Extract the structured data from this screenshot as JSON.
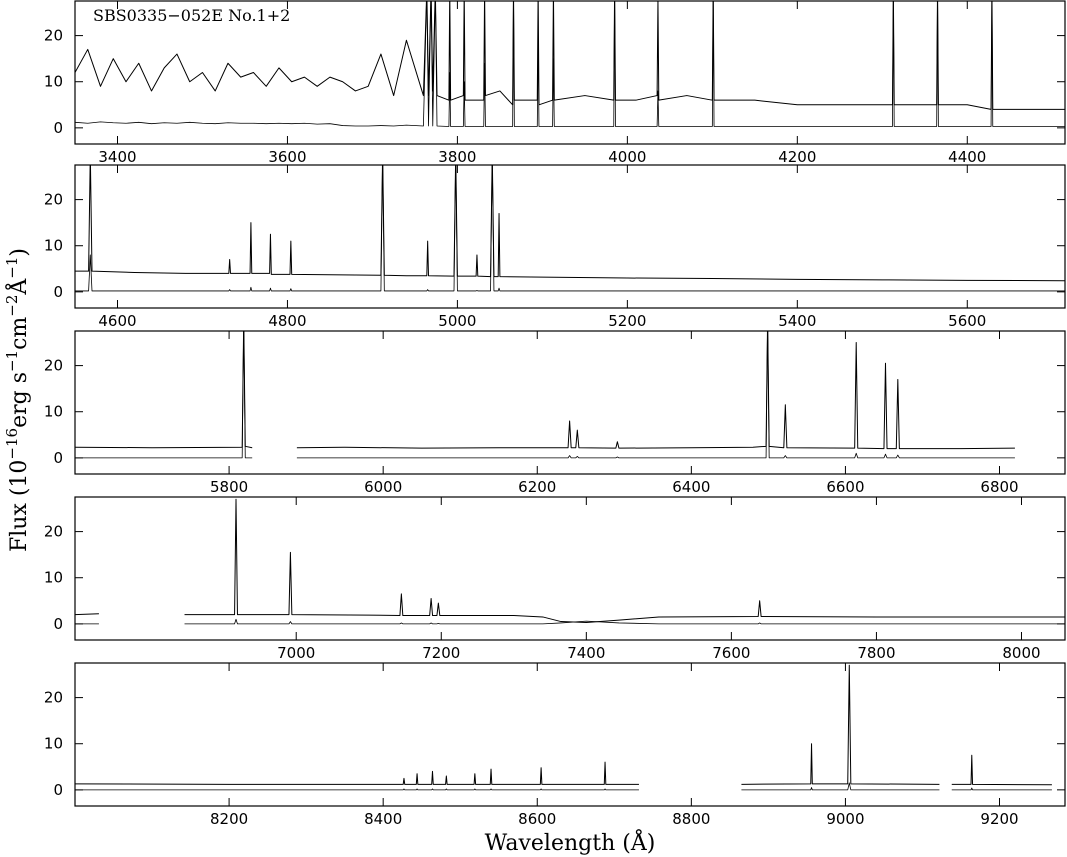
{
  "figure": {
    "xlabel": "Wavelength (Å)",
    "ylabel": [
      "Flux (10",
      "−16",
      "erg s",
      "−1",
      "cm",
      "−2",
      "Å",
      "−1",
      ")"
    ]
  },
  "chart_data": [
    {
      "type": "line",
      "title": "SBS0335−052E No.1+2",
      "xlim": [
        3350,
        4515
      ],
      "ylim": [
        -3.5,
        27.5
      ],
      "xticks": [
        3400,
        3600,
        3800,
        4000,
        4200,
        4400
      ],
      "yticks": [
        0,
        10,
        20
      ],
      "x": [
        3350,
        3365,
        3380,
        3395,
        3410,
        3425,
        3440,
        3455,
        3470,
        3485,
        3500,
        3515,
        3530,
        3545,
        3560,
        3575,
        3590,
        3605,
        3620,
        3635,
        3650,
        3665,
        3680,
        3695,
        3710,
        3725,
        3740,
        3760,
        3764,
        3766,
        3769,
        3771,
        3774,
        3776,
        3790,
        3791,
        3792,
        3807,
        3808,
        3809,
        3831,
        3832,
        3833,
        3850,
        3865,
        3866,
        3867,
        3894,
        3895,
        3896,
        3912,
        3913,
        3914,
        3950,
        3984,
        3985,
        3986,
        4010,
        4035,
        4036,
        4037,
        4070,
        4100,
        4101,
        4102,
        4150,
        4200,
        4250,
        4312,
        4313,
        4314,
        4340,
        4364,
        4365,
        4366,
        4400,
        4428,
        4429,
        4430,
        4470,
        4515
      ],
      "series": [
        {
          "color": "#000000",
          "values": [
            12,
            17,
            9,
            15,
            10,
            14,
            8,
            13,
            16,
            10,
            12,
            8,
            14,
            11,
            12,
            9,
            13,
            10,
            11,
            9,
            11,
            10,
            8,
            9,
            16,
            7,
            19,
            7,
            30,
            7,
            30,
            8,
            30,
            7,
            6,
            30,
            6,
            7,
            30,
            6,
            6,
            30,
            7,
            8,
            5,
            30,
            6,
            6,
            30,
            5,
            6,
            30,
            6,
            7,
            6,
            30,
            6,
            6,
            7,
            28,
            6,
            7,
            6,
            30,
            6,
            6,
            5,
            5,
            5,
            30,
            5,
            5,
            5,
            30,
            5,
            5,
            4,
            30,
            4,
            4,
            4
          ]
        },
        {
          "color": "#000000",
          "values": [
            1.2,
            1,
            1.3,
            1.1,
            1,
            1.2,
            0.9,
            1.1,
            1,
            1.2,
            1,
            0.9,
            1.1,
            1,
            1,
            0.9,
            1,
            0.9,
            1,
            0.8,
            0.9,
            0.5,
            0.4,
            0.4,
            0.5,
            0.4,
            0.6,
            0.4,
            30,
            0.4,
            30,
            0.4,
            30,
            0.4,
            0.3,
            12,
            0.3,
            0.3,
            10,
            0.3,
            0.3,
            14,
            0.3,
            0.3,
            0.3,
            30,
            0.3,
            0.3,
            20,
            0.3,
            0.3,
            15,
            0.3,
            0.3,
            0.3,
            30,
            0.3,
            0.3,
            0.3,
            8,
            0.3,
            0.3,
            0.3,
            30,
            0.3,
            0.3,
            0.3,
            0.3,
            0.3,
            30,
            0.3,
            0.3,
            0.3,
            30,
            0.3,
            0.3,
            0.3,
            30,
            0.3,
            0.3,
            0.3
          ]
        }
      ]
    },
    {
      "type": "line",
      "xlim": [
        4550,
        5715
      ],
      "ylim": [
        -3.5,
        27.5
      ],
      "xticks": [
        4600,
        4800,
        5000,
        5200,
        5400,
        5600
      ],
      "yticks": [
        0,
        10,
        20
      ],
      "x": [
        4550,
        4566,
        4568,
        4570,
        4620,
        4680,
        4731,
        4732,
        4733,
        4756,
        4757,
        4758,
        4779,
        4780,
        4781,
        4803,
        4804,
        4805,
        4850,
        4910,
        4912,
        4914,
        4940,
        4964,
        4965,
        4966,
        4996,
        4998,
        5000,
        5022,
        5023,
        5024,
        5039,
        5041,
        5043,
        5048,
        5049,
        5050,
        5100,
        5200,
        5300,
        5400,
        5500,
        5600,
        5715
      ],
      "series": [
        {
          "color": "#000000",
          "values": [
            4.5,
            4.5,
            30,
            4.5,
            4.2,
            4,
            4,
            7,
            4,
            4,
            15,
            4,
            4,
            12.5,
            3.8,
            3.8,
            11,
            3.8,
            3.7,
            3.6,
            30,
            3.6,
            3.5,
            3.5,
            11,
            3.5,
            3.4,
            30,
            3.4,
            3.4,
            8,
            3.4,
            3.3,
            30,
            3.3,
            3.3,
            17,
            3.3,
            3.2,
            3,
            2.9,
            2.7,
            2.6,
            2.5,
            2.4
          ]
        },
        {
          "color": "#000000",
          "values": [
            0.2,
            0.2,
            8,
            0.2,
            0.2,
            0.2,
            0.2,
            0.5,
            0.2,
            0.2,
            1,
            0.2,
            0.2,
            0.8,
            0.2,
            0.2,
            0.7,
            0.2,
            0.2,
            0.2,
            30,
            0.2,
            0.2,
            0.2,
            0.5,
            0.2,
            0.2,
            30,
            0.2,
            0.2,
            0.3,
            0.2,
            0.2,
            30,
            0.2,
            0.2,
            0.8,
            0.2,
            0.2,
            0.2,
            0.2,
            0.2,
            0.2,
            0.2,
            0.2
          ]
        }
      ]
    },
    {
      "type": "line",
      "xlim": [
        5600,
        6885
      ],
      "ylim": [
        -3.5,
        27.5
      ],
      "xticks": [
        5800,
        6000,
        6200,
        6400,
        6600,
        6800
      ],
      "yticks": [
        0,
        10,
        20
      ],
      "x": [
        5600,
        5700,
        5817,
        5819,
        5821,
        5830,
        5860,
        5888,
        5950,
        6050,
        6150,
        6240,
        6242,
        6244,
        6250,
        6252,
        6254,
        6302,
        6304,
        6306,
        6400,
        6480,
        6497,
        6499,
        6501,
        6520,
        6522,
        6524,
        6612,
        6614,
        6616,
        6650,
        6652,
        6654,
        6666,
        6668,
        6670,
        6750,
        6820
      ],
      "series": [
        {
          "color": "#000000",
          "values": [
            2.3,
            2.2,
            2.3,
            30,
            2.5,
            2.2,
            null,
            2.2,
            2.3,
            2.1,
            2.2,
            2.2,
            8,
            2.2,
            2.2,
            6,
            2.2,
            2.1,
            3.5,
            2.1,
            2.2,
            2.3,
            2.5,
            30,
            2.5,
            2.2,
            11.5,
            2.2,
            2.1,
            25,
            2.1,
            2.0,
            20.5,
            2.0,
            2.0,
            17,
            2.0,
            2.0,
            2.1
          ]
        },
        {
          "color": "#000000",
          "values": [
            0,
            0,
            0,
            30,
            0,
            0,
            null,
            0,
            0,
            0,
            0,
            0,
            0.5,
            0,
            0,
            0.3,
            0,
            0,
            0.2,
            0,
            0,
            0,
            0,
            30,
            0,
            0,
            0.5,
            0,
            0,
            1,
            0,
            0,
            0.8,
            0,
            0,
            0.6,
            0,
            0,
            0
          ]
        }
      ]
    },
    {
      "type": "line",
      "xlim": [
        6695,
        8060
      ],
      "ylim": [
        -3.5,
        27.5
      ],
      "xticks": [
        7000,
        7200,
        7400,
        7600,
        7800,
        8000
      ],
      "yticks": [
        0,
        10,
        20
      ],
      "x": [
        6695,
        6728,
        6760,
        6846,
        6915,
        6917,
        6919,
        6990,
        6992,
        6994,
        7100,
        7143,
        7145,
        7147,
        7184,
        7186,
        7188,
        7194,
        7196,
        7198,
        7300,
        7340,
        7365,
        7400,
        7445,
        7500,
        7637,
        7639,
        7641,
        7800,
        8060
      ],
      "series": [
        {
          "color": "#000000",
          "values": [
            2,
            2.2,
            null,
            2,
            2,
            27,
            2,
            2,
            15.5,
            2,
            1.9,
            1.8,
            6.5,
            1.8,
            1.8,
            5.5,
            1.8,
            1.8,
            4.5,
            1.8,
            1.8,
            1.5,
            0.5,
            0.3,
            0.8,
            1.5,
            1.6,
            5,
            1.6,
            1.5,
            1.5
          ]
        },
        {
          "color": "#000000",
          "values": [
            0,
            0,
            null,
            0,
            0,
            1,
            0,
            0,
            0.5,
            0,
            0,
            0,
            0.2,
            0,
            0,
            0.2,
            0,
            0,
            0.1,
            0,
            0,
            0,
            0.2,
            0.6,
            0.2,
            0,
            0,
            0.2,
            0,
            0,
            0
          ]
        }
      ]
    },
    {
      "type": "line",
      "xlim": [
        8000,
        9285
      ],
      "ylim": [
        -3.5,
        27.5
      ],
      "xticks": [
        8200,
        8400,
        8600,
        8800,
        9000,
        9200
      ],
      "yticks": [
        0,
        10,
        20
      ],
      "x": [
        8000,
        8200,
        8400,
        8426,
        8427,
        8428,
        8443,
        8444,
        8445,
        8463,
        8464,
        8465,
        8481,
        8482,
        8483,
        8518,
        8519,
        8520,
        8539,
        8540,
        8541,
        8604,
        8605,
        8606,
        8687,
        8688,
        8689,
        8732,
        8800,
        8865,
        8955,
        8956,
        8957,
        9003,
        9005,
        9007,
        9122,
        9130,
        9138,
        9163,
        9164,
        9165,
        9268
      ],
      "series": [
        {
          "color": "#000000",
          "values": [
            1.3,
            1.2,
            1.2,
            1.2,
            2.5,
            1.2,
            1.2,
            3.5,
            1.2,
            1.2,
            4,
            1.2,
            1.2,
            3,
            1.2,
            1.2,
            3.5,
            1.2,
            1.2,
            4.5,
            1.2,
            1.2,
            4.8,
            1.2,
            1.2,
            6,
            1.2,
            1.2,
            null,
            1.2,
            1.3,
            10,
            1.3,
            1.3,
            27,
            1.3,
            1.2,
            null,
            1.2,
            1.2,
            7.5,
            1.2,
            1.1
          ]
        },
        {
          "color": "#000000",
          "values": [
            0,
            0,
            0,
            0,
            0.2,
            0,
            0,
            0.2,
            0,
            0,
            0.2,
            0,
            0,
            0.2,
            0,
            0,
            0.2,
            0,
            0,
            0.2,
            0,
            0,
            0.2,
            0,
            0,
            0.2,
            0,
            0,
            null,
            0,
            0,
            0.5,
            0,
            0,
            1.5,
            0,
            0,
            null,
            0,
            0,
            0.4,
            0,
            0
          ]
        }
      ]
    }
  ]
}
